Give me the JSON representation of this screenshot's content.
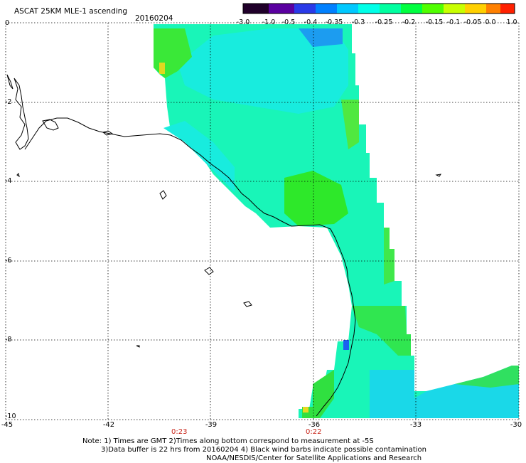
{
  "header": {
    "title": "ASCAT 25KM MLE-1 ascending",
    "date": "20160204"
  },
  "colorbar": {
    "labels": [
      "-3.0",
      "-1.0",
      "-0.5",
      "-0.4",
      "-0.35",
      "-0.3",
      "-0.25",
      "-0.2",
      "-0.15",
      "-0.1",
      "-0.05",
      "0.0",
      "1.0"
    ],
    "colors": [
      "#2a002a",
      "#4b0082",
      "#3a28d8",
      "#0060ff",
      "#00a0ff",
      "#00e0ff",
      "#00ffd0",
      "#00ff80",
      "#20ff20",
      "#80ff00",
      "#ffff00",
      "#ffa000",
      "#ff2000"
    ]
  },
  "axes": {
    "y_ticks": [
      "0",
      "-2",
      "-4",
      "-6",
      "-8",
      "-10"
    ],
    "x_ticks": [
      "-45",
      "-42",
      "-39",
      "-36",
      "-33",
      "-30"
    ]
  },
  "times": [
    "0:23",
    "0:22"
  ],
  "notes": [
    "Note: 1) Times are GMT 2)Times along bottom correspond to measurement at -5S",
    "3)Data buffer is 22 hrs from 20160204 4) Black wind barbs indicate possible contamination",
    "NOAA/NESDIS/Center for Satellite Applications and Research"
  ]
}
